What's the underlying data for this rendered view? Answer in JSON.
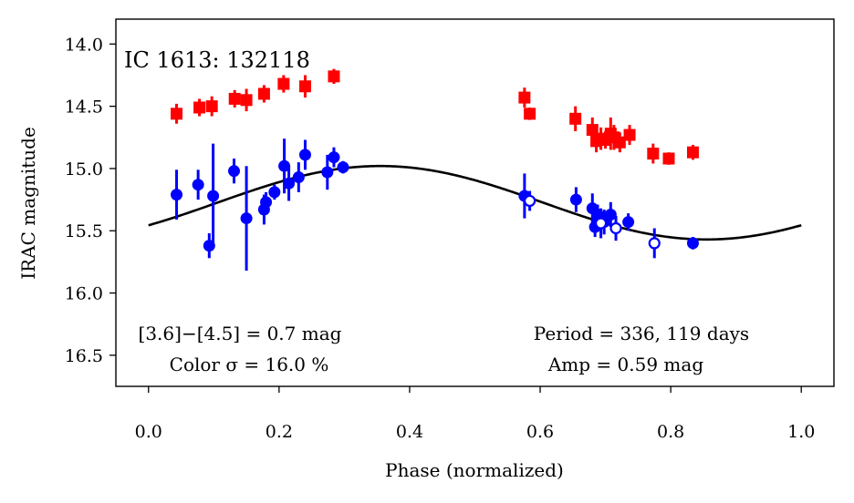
{
  "chart_data": {
    "type": "scatter",
    "title": "IC 1613:  132118",
    "xlabel": "Phase (normalized)",
    "ylabel": "IRAC magnitude",
    "xlim": [
      -0.05,
      1.05
    ],
    "ylim": [
      16.75,
      13.8
    ],
    "y_inverted": true,
    "grid": false,
    "xticks": [
      0.0,
      0.2,
      0.4,
      0.6,
      0.8,
      1.0
    ],
    "xtick_labels": [
      "0.0",
      "0.2",
      "0.4",
      "0.6",
      "0.8",
      "1.0"
    ],
    "yticks": [
      14.0,
      14.5,
      15.0,
      15.5,
      16.0,
      16.5
    ],
    "ytick_labels": [
      "14.0",
      "14.5",
      "15.0",
      "15.5",
      "16.0",
      "16.5"
    ],
    "annotations": {
      "color_line1": "[3.6]−[4.5] = 0.7 mag",
      "color_line2": "Color σ = 16.0 %",
      "period": "Period = 336, 119 days",
      "amp": "Amp = 0.59 mag"
    },
    "colors": {
      "red": "#ff0000",
      "blue": "#0000ff",
      "fit": "#000000"
    },
    "series": [
      {
        "name": "[4.5] (red squares)",
        "marker": "square",
        "color": "#ff0000",
        "points": [
          {
            "x": 0.043,
            "y": 14.56,
            "err": 0.08
          },
          {
            "x": 0.078,
            "y": 14.51,
            "err": 0.07
          },
          {
            "x": 0.097,
            "y": 14.5,
            "err": 0.08
          },
          {
            "x": 0.132,
            "y": 14.44,
            "err": 0.07
          },
          {
            "x": 0.15,
            "y": 14.45,
            "err": 0.09
          },
          {
            "x": 0.177,
            "y": 14.4,
            "err": 0.07
          },
          {
            "x": 0.207,
            "y": 14.32,
            "err": 0.07
          },
          {
            "x": 0.24,
            "y": 14.34,
            "err": 0.09
          },
          {
            "x": 0.284,
            "y": 14.26,
            "err": 0.06
          },
          {
            "x": 0.576,
            "y": 14.43,
            "err": 0.08
          },
          {
            "x": 0.584,
            "y": 14.56,
            "err": 0.05
          },
          {
            "x": 0.654,
            "y": 14.6,
            "err": 0.1
          },
          {
            "x": 0.68,
            "y": 14.69,
            "err": 0.1
          },
          {
            "x": 0.686,
            "y": 14.78,
            "err": 0.09
          },
          {
            "x": 0.693,
            "y": 14.76,
            "err": 0.09
          },
          {
            "x": 0.7,
            "y": 14.77,
            "err": 0.07
          },
          {
            "x": 0.708,
            "y": 14.72,
            "err": 0.13
          },
          {
            "x": 0.713,
            "y": 14.75,
            "err": 0.1
          },
          {
            "x": 0.722,
            "y": 14.79,
            "err": 0.08
          },
          {
            "x": 0.737,
            "y": 14.73,
            "err": 0.08
          },
          {
            "x": 0.773,
            "y": 14.88,
            "err": 0.08
          },
          {
            "x": 0.797,
            "y": 14.92,
            "err": 0.05
          },
          {
            "x": 0.834,
            "y": 14.87,
            "err": 0.06
          }
        ]
      },
      {
        "name": "[3.6] (blue circles)",
        "marker": "circle",
        "color": "#0000ff",
        "points": [
          {
            "x": 0.043,
            "y": 15.21,
            "err": 0.2
          },
          {
            "x": 0.076,
            "y": 15.13,
            "err": 0.12
          },
          {
            "x": 0.093,
            "y": 15.62,
            "err": 0.1
          },
          {
            "x": 0.099,
            "y": 15.22,
            "err": 0.42
          },
          {
            "x": 0.131,
            "y": 15.02,
            "err": 0.1
          },
          {
            "x": 0.15,
            "y": 15.4,
            "err": 0.42
          },
          {
            "x": 0.177,
            "y": 15.33,
            "err": 0.12
          },
          {
            "x": 0.18,
            "y": 15.27,
            "err": 0.08
          },
          {
            "x": 0.193,
            "y": 15.19,
            "err": 0.06
          },
          {
            "x": 0.208,
            "y": 14.98,
            "err": 0.22
          },
          {
            "x": 0.215,
            "y": 15.12,
            "err": 0.14
          },
          {
            "x": 0.23,
            "y": 15.07,
            "err": 0.12
          },
          {
            "x": 0.24,
            "y": 14.89,
            "err": 0.12
          },
          {
            "x": 0.274,
            "y": 15.03,
            "err": 0.14
          },
          {
            "x": 0.284,
            "y": 14.91,
            "err": 0.08
          },
          {
            "x": 0.298,
            "y": 14.99,
            "err": 0.05
          },
          {
            "x": 0.576,
            "y": 15.22,
            "err": 0.18
          },
          {
            "x": 0.655,
            "y": 15.25,
            "err": 0.1
          },
          {
            "x": 0.68,
            "y": 15.32,
            "err": 0.12
          },
          {
            "x": 0.684,
            "y": 15.47,
            "err": 0.08
          },
          {
            "x": 0.688,
            "y": 15.37,
            "err": 0.08
          },
          {
            "x": 0.698,
            "y": 15.43,
            "err": 0.1
          },
          {
            "x": 0.708,
            "y": 15.37,
            "err": 0.1
          },
          {
            "x": 0.735,
            "y": 15.43,
            "err": 0.07
          },
          {
            "x": 0.834,
            "y": 15.6,
            "err": 0.05
          }
        ]
      },
      {
        "name": "[3.6] open (blue open circles)",
        "marker": "open-circle",
        "color": "#0000ff",
        "points": [
          {
            "x": 0.584,
            "y": 15.26,
            "err": 0.08
          },
          {
            "x": 0.693,
            "y": 15.44,
            "err": 0.12
          },
          {
            "x": 0.716,
            "y": 15.48,
            "err": 0.1
          },
          {
            "x": 0.775,
            "y": 15.6,
            "err": 0.12
          }
        ]
      }
    ],
    "fit_curve": {
      "name": "sinusoidal fit",
      "color": "#000000",
      "mean": 15.275,
      "amplitude": 0.295,
      "peak_phase": 0.355
    }
  }
}
